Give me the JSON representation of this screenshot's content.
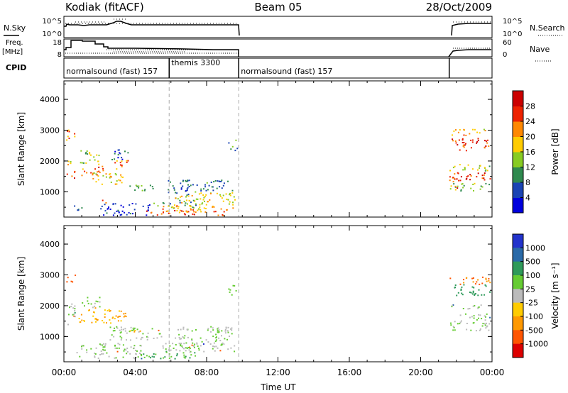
{
  "header": {
    "station": "Kodiak (fitACF)",
    "beam": "Beam 05",
    "date": "28/Oct/2009"
  },
  "params": {
    "nsky_label": "N.Sky",
    "nsky_ticks": [
      "10^5",
      "10^0"
    ],
    "nsearch_label": "N.Search",
    "nsearch_ticks": [
      "10^5",
      "10^0"
    ],
    "freq_label": "Freq.",
    "freq_unit": "[MHz]",
    "freq_ticks": [
      "18",
      "8"
    ],
    "nave_label": "Nave",
    "nave_ticks": [
      "60",
      "0"
    ],
    "cpid_label": "CPID",
    "cpid_segments": [
      {
        "label": "normalsound (fast) 157",
        "start_hr": 0.0,
        "end_hr": 5.9
      },
      {
        "label": "themis 3300",
        "start_hr": 5.9,
        "end_hr": 9.8
      },
      {
        "label": "normalsound (fast) 157",
        "start_hr": 9.8,
        "end_hr": 21.6
      }
    ]
  },
  "chart_data": [
    {
      "type": "heatmap",
      "title": "",
      "ylabel": "Slant Range [km]",
      "xlabel": "",
      "x_range_hr": [
        0,
        24
      ],
      "ylim": [
        180,
        4600
      ],
      "y_ticks": [
        "1000",
        "2000",
        "3000",
        "4000"
      ],
      "colorbar_label": "Power [dB]",
      "colorbar_ticks": [
        "28",
        "24",
        "20",
        "16",
        "12",
        "8",
        "4"
      ],
      "colorbar_colors": [
        "#0000dd",
        "#1a44b4",
        "#2f8a4f",
        "#88cc22",
        "#ffcc00",
        "#ff8800",
        "#ee2200",
        "#cc0000"
      ],
      "vlines_hr": [
        5.9,
        9.8
      ],
      "blobs": [
        {
          "t0": 0.1,
          "t1": 0.7,
          "r0": 2700,
          "r1": 3050,
          "v": 22
        },
        {
          "t0": 0.1,
          "t1": 0.6,
          "r0": 1350,
          "r1": 1700,
          "v": 26
        },
        {
          "t0": 0.1,
          "t1": 0.5,
          "r0": 1850,
          "r1": 2150,
          "v": 16
        },
        {
          "t0": 0.5,
          "t1": 1.0,
          "r0": 400,
          "r1": 700,
          "v": 10
        },
        {
          "t0": 0.9,
          "t1": 2.5,
          "r0": 1550,
          "r1": 1850,
          "v": 24
        },
        {
          "t0": 0.9,
          "t1": 2.0,
          "r0": 1900,
          "r1": 2400,
          "v": 14
        },
        {
          "t0": 1.6,
          "t1": 3.4,
          "r0": 1250,
          "r1": 1650,
          "v": 18
        },
        {
          "t0": 2.6,
          "t1": 3.6,
          "r0": 2050,
          "r1": 2450,
          "v": 8
        },
        {
          "t0": 2.8,
          "t1": 3.8,
          "r0": 1750,
          "r1": 2050,
          "v": 22
        },
        {
          "t0": 1.8,
          "t1": 2.4,
          "r0": 650,
          "r1": 750,
          "v": 24
        },
        {
          "t0": 3.5,
          "t1": 5.0,
          "r0": 1050,
          "r1": 1300,
          "v": 12
        },
        {
          "t0": 2.0,
          "t1": 4.8,
          "r0": 250,
          "r1": 650,
          "v": 4
        },
        {
          "t0": 4.6,
          "t1": 7.5,
          "r0": 250,
          "r1": 450,
          "v": 26
        },
        {
          "t0": 5.0,
          "t1": 7.4,
          "r0": 500,
          "r1": 750,
          "v": 10
        },
        {
          "t0": 5.5,
          "t1": 9.6,
          "r0": 350,
          "r1": 600,
          "v": 20
        },
        {
          "t0": 6.2,
          "t1": 9.6,
          "r0": 600,
          "r1": 1050,
          "v": 17
        },
        {
          "t0": 6.5,
          "t1": 9.5,
          "r0": 1050,
          "r1": 1400,
          "v": 8
        },
        {
          "t0": 5.8,
          "t1": 7.0,
          "r0": 900,
          "r1": 1400,
          "v": 6
        },
        {
          "t0": 8.3,
          "t1": 9.5,
          "r0": 250,
          "r1": 400,
          "v": 24
        },
        {
          "t0": 9.2,
          "t1": 9.7,
          "r0": 2350,
          "r1": 2700,
          "v": 10
        },
        {
          "t0": 21.6,
          "t1": 23.9,
          "r0": 2350,
          "r1": 2750,
          "v": 26
        },
        {
          "t0": 21.6,
          "t1": 23.9,
          "r0": 2850,
          "r1": 3050,
          "v": 20
        },
        {
          "t0": 21.6,
          "t1": 23.9,
          "r0": 1400,
          "r1": 1650,
          "v": 27
        },
        {
          "t0": 21.6,
          "t1": 23.9,
          "r0": 1700,
          "r1": 1950,
          "v": 16
        },
        {
          "t0": 21.6,
          "t1": 23.9,
          "r0": 1050,
          "r1": 1300,
          "v": 13
        },
        {
          "t0": 21.6,
          "t1": 22.2,
          "r0": 1100,
          "r1": 1650,
          "v": 25
        }
      ]
    },
    {
      "type": "heatmap",
      "title": "",
      "ylabel": "Slant Range [km]",
      "xlabel": "Time UT",
      "x_range_hr": [
        0,
        24
      ],
      "x_ticks": [
        "00:00",
        "04:00",
        "08:00",
        "12:00",
        "16:00",
        "20:00",
        "00:00"
      ],
      "ylim": [
        180,
        4600
      ],
      "y_ticks": [
        "1000",
        "2000",
        "3000",
        "4000"
      ],
      "colorbar_label": "Velocity [m s⁻¹]",
      "colorbar_ticks": [
        "1000",
        "500",
        "100",
        "25",
        "-25",
        "-100",
        "-500",
        "-1000"
      ],
      "colorbar_colors": [
        "#2233cc",
        "#2a6aa8",
        "#2e9a5a",
        "#66cc33",
        "#bbbbbb",
        "#ffcc00",
        "#ff9900",
        "#ff5500",
        "#dd0000"
      ],
      "vlines_hr": [
        5.9,
        9.8
      ],
      "blobs": [
        {
          "t0": 0.1,
          "t1": 0.6,
          "r0": 2750,
          "r1": 3050,
          "v": -400
        },
        {
          "t0": 0.1,
          "t1": 0.6,
          "r0": 1300,
          "r1": 2100,
          "v": 0
        },
        {
          "t0": 0.8,
          "t1": 3.5,
          "r0": 1450,
          "r1": 1950,
          "v": -60
        },
        {
          "t0": 1.0,
          "t1": 2.0,
          "r0": 1900,
          "r1": 2300,
          "v": 0
        },
        {
          "t0": 2.5,
          "t1": 5.5,
          "r0": 900,
          "r1": 1350,
          "v": 0
        },
        {
          "t0": 3.3,
          "t1": 4.3,
          "r0": 1150,
          "r1": 1250,
          "v": -60
        },
        {
          "t0": 0.6,
          "t1": 4.5,
          "r0": 300,
          "r1": 800,
          "v": 0
        },
        {
          "t0": 4.0,
          "t1": 7.5,
          "r0": 300,
          "r1": 550,
          "v": 60
        },
        {
          "t0": 5.0,
          "t1": 7.5,
          "r0": 550,
          "r1": 800,
          "v": 0
        },
        {
          "t0": 6.2,
          "t1": 9.6,
          "r0": 500,
          "r1": 1350,
          "v": 0
        },
        {
          "t0": 9.2,
          "t1": 9.7,
          "r0": 2300,
          "r1": 2700,
          "v": 60
        },
        {
          "t0": 21.6,
          "t1": 23.9,
          "r0": 2350,
          "r1": 2700,
          "v": 150
        },
        {
          "t0": 21.6,
          "t1": 23.9,
          "r0": 2700,
          "r1": 2950,
          "v": -300
        },
        {
          "t0": 21.6,
          "t1": 23.9,
          "r0": 1200,
          "r1": 1750,
          "v": 0
        },
        {
          "t0": 21.6,
          "t1": 23.9,
          "r0": 1900,
          "r1": 2050,
          "v": 0
        }
      ]
    }
  ]
}
